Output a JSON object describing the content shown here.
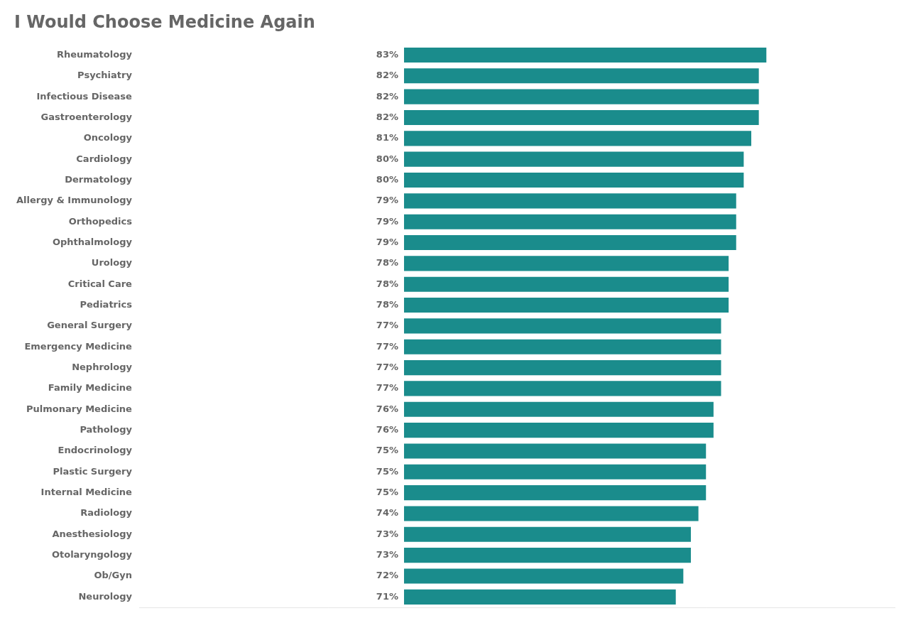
{
  "chart_data": {
    "type": "bar",
    "orientation": "horizontal",
    "title": "I Would Choose Medicine Again",
    "categories": [
      "Rheumatology",
      "Psychiatry",
      "Infectious Disease",
      "Gastroenterology",
      "Oncology",
      "Cardiology",
      "Dermatology",
      "Allergy & Immunology",
      "Orthopedics",
      "Ophthalmology",
      "Urology",
      "Critical Care",
      "Pediatrics",
      "General Surgery",
      "Emergency Medicine",
      "Nephrology",
      "Family Medicine",
      "Pulmonary Medicine",
      "Pathology",
      "Endocrinology",
      "Plastic Surgery",
      "Internal Medicine",
      "Radiology",
      "Anesthesiology",
      "Otolaryngology",
      "Ob/Gyn",
      "Neurology"
    ],
    "values": [
      83,
      82,
      82,
      82,
      81,
      80,
      80,
      79,
      79,
      79,
      78,
      78,
      78,
      77,
      77,
      77,
      77,
      76,
      76,
      75,
      75,
      75,
      74,
      73,
      73,
      72,
      71
    ],
    "value_labels": [
      "83%",
      "82%",
      "82%",
      "82%",
      "81%",
      "80%",
      "80%",
      "79%",
      "79%",
      "79%",
      "78%",
      "78%",
      "78%",
      "77%",
      "77%",
      "77%",
      "77%",
      "76%",
      "76%",
      "75%",
      "75%",
      "75%",
      "74%",
      "73%",
      "73%",
      "72%",
      "71%"
    ],
    "base": 35,
    "color": "#1A8C8C",
    "xlim": [
      0,
      100
    ],
    "grid": false,
    "data_labels": true,
    "tick_labels": "y"
  }
}
